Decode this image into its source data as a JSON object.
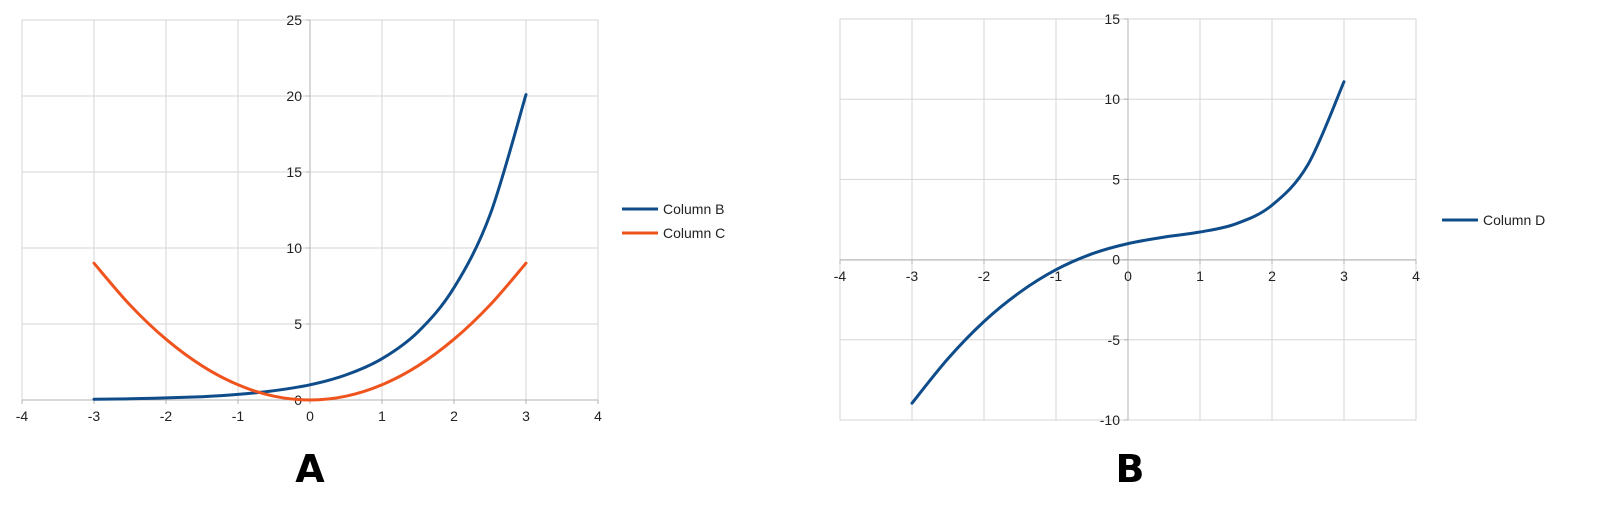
{
  "chart_data": [
    {
      "type": "line",
      "panel_label": "A",
      "x": [
        -3,
        -2.5,
        -2,
        -1.5,
        -1,
        -0.5,
        0,
        0.5,
        1,
        1.5,
        2,
        2.5,
        3
      ],
      "series": [
        {
          "name": "Column B",
          "color": "#0f4c8a",
          "values": [
            0.05,
            0.08,
            0.14,
            0.22,
            0.37,
            0.61,
            1.0,
            1.65,
            2.72,
            4.48,
            7.39,
            12.18,
            20.09
          ]
        },
        {
          "name": "Column C",
          "color": "#f0541e",
          "values": [
            9,
            6.25,
            4,
            2.25,
            1,
            0.25,
            0,
            0.25,
            1,
            2.25,
            4,
            6.25,
            9
          ]
        }
      ],
      "xlim": [
        -4,
        4
      ],
      "ylim": [
        0,
        25
      ],
      "x_ticks": [
        "-4",
        "-3",
        "-2",
        "-1",
        "0",
        "1",
        "2",
        "3",
        "4"
      ],
      "y_ticks": [
        "0",
        "5",
        "10",
        "15",
        "20",
        "25"
      ],
      "grid": true,
      "legend_position": "right"
    },
    {
      "type": "line",
      "panel_label": "B",
      "x": [
        -3,
        -2.5,
        -2,
        -1.5,
        -1,
        -0.5,
        0,
        0.5,
        1,
        1.5,
        2,
        2.5,
        3
      ],
      "series": [
        {
          "name": "Column D",
          "color": "#0f4c8a",
          "values": [
            -8.95,
            -6.17,
            -3.86,
            -2.03,
            -0.63,
            0.36,
            1.0,
            1.4,
            1.72,
            2.23,
            3.39,
            5.93,
            11.09
          ]
        }
      ],
      "xlim": [
        -4,
        4
      ],
      "ylim": [
        -10,
        15
      ],
      "x_ticks": [
        "-4",
        "-3",
        "-2",
        "-1",
        "0",
        "1",
        "2",
        "3",
        "4"
      ],
      "y_ticks": [
        "-10",
        "-5",
        "0",
        "5",
        "10",
        "15"
      ],
      "grid": true,
      "legend_position": "right"
    }
  ]
}
